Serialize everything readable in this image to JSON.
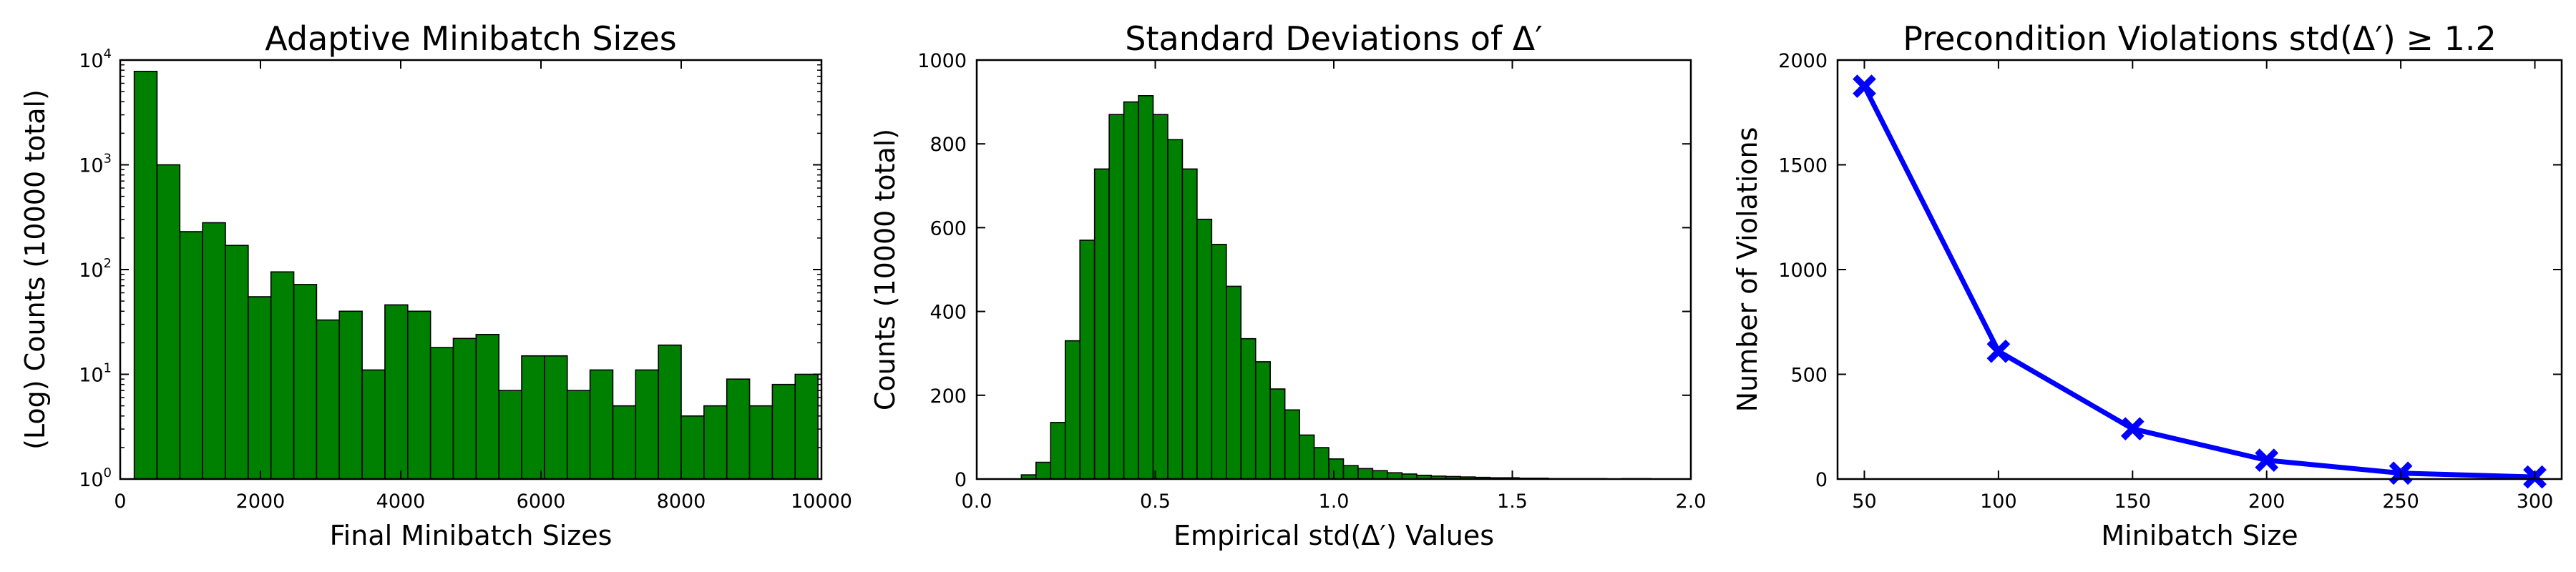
{
  "chart_data": [
    {
      "type": "bar",
      "title": "Adaptive Minibatch Sizes",
      "xlabel": "Final Minibatch Sizes",
      "ylabel": "(Log) Counts (10000 total)",
      "yscale": "log",
      "xlim": [
        0,
        10000
      ],
      "ylim": [
        1,
        10000
      ],
      "xticks": [
        0,
        2000,
        4000,
        6000,
        8000,
        10000
      ],
      "yticks": [
        1,
        10,
        100,
        1000,
        10000
      ],
      "ytick_labels": [
        {
          "base": "10",
          "exp": "0"
        },
        {
          "base": "10",
          "exp": "1"
        },
        {
          "base": "10",
          "exp": "2"
        },
        {
          "base": "10",
          "exp": "3"
        },
        {
          "base": "10",
          "exp": "4"
        }
      ],
      "bar_color": "#008000",
      "bins": [
        [
          200,
          525,
          7800
        ],
        [
          525,
          850,
          1000
        ],
        [
          850,
          1175,
          230
        ],
        [
          1175,
          1500,
          280
        ],
        [
          1500,
          1825,
          170
        ],
        [
          1825,
          2150,
          55
        ],
        [
          2150,
          2475,
          95
        ],
        [
          2475,
          2800,
          72
        ],
        [
          2800,
          3125,
          33
        ],
        [
          3125,
          3450,
          40
        ],
        [
          3450,
          3775,
          11
        ],
        [
          3775,
          4100,
          46
        ],
        [
          4100,
          4425,
          40
        ],
        [
          4425,
          4750,
          18
        ],
        [
          4750,
          5075,
          22
        ],
        [
          5075,
          5400,
          24
        ],
        [
          5400,
          5725,
          7
        ],
        [
          5725,
          6050,
          15
        ],
        [
          6050,
          6375,
          15
        ],
        [
          6375,
          6700,
          7
        ],
        [
          6700,
          7025,
          11
        ],
        [
          7025,
          7350,
          5
        ],
        [
          7350,
          7675,
          11
        ],
        [
          7675,
          8000,
          19
        ],
        [
          8000,
          8325,
          4
        ],
        [
          8325,
          8650,
          5
        ],
        [
          8650,
          8975,
          9
        ],
        [
          8975,
          9300,
          5
        ],
        [
          9300,
          9625,
          8
        ],
        [
          9625,
          9950,
          10
        ]
      ]
    },
    {
      "type": "bar",
      "title": "Standard Deviations of Δ′",
      "xlabel": "Empirical std(Δ′) Values",
      "ylabel": "Counts (10000 total)",
      "xlim": [
        0.0,
        2.0
      ],
      "ylim": [
        0,
        1000
      ],
      "xticks": [
        0.0,
        0.5,
        1.0,
        1.5,
        2.0
      ],
      "xtick_labels": [
        "0.0",
        "0.5",
        "1.0",
        "1.5",
        "2.0"
      ],
      "yticks": [
        0,
        200,
        400,
        600,
        800,
        1000
      ],
      "bar_color": "#008000",
      "bins": [
        [
          0.125,
          0.166,
          10
        ],
        [
          0.166,
          0.207,
          40
        ],
        [
          0.207,
          0.248,
          135
        ],
        [
          0.248,
          0.289,
          330
        ],
        [
          0.289,
          0.33,
          570
        ],
        [
          0.33,
          0.371,
          740
        ],
        [
          0.371,
          0.412,
          870
        ],
        [
          0.412,
          0.453,
          900
        ],
        [
          0.453,
          0.494,
          915
        ],
        [
          0.494,
          0.535,
          870
        ],
        [
          0.535,
          0.576,
          810
        ],
        [
          0.576,
          0.617,
          740
        ],
        [
          0.617,
          0.658,
          620
        ],
        [
          0.658,
          0.699,
          560
        ],
        [
          0.699,
          0.74,
          460
        ],
        [
          0.74,
          0.781,
          335
        ],
        [
          0.781,
          0.822,
          280
        ],
        [
          0.822,
          0.863,
          215
        ],
        [
          0.863,
          0.904,
          165
        ],
        [
          0.904,
          0.945,
          105
        ],
        [
          0.945,
          0.986,
          75
        ],
        [
          0.986,
          1.027,
          48
        ],
        [
          1.027,
          1.068,
          32
        ],
        [
          1.068,
          1.109,
          25
        ],
        [
          1.109,
          1.15,
          20
        ],
        [
          1.15,
          1.191,
          15
        ],
        [
          1.191,
          1.232,
          12
        ],
        [
          1.232,
          1.273,
          9
        ],
        [
          1.273,
          1.314,
          7
        ],
        [
          1.314,
          1.355,
          6
        ],
        [
          1.355,
          1.396,
          5
        ],
        [
          1.396,
          1.437,
          4
        ],
        [
          1.437,
          1.478,
          3
        ],
        [
          1.478,
          1.519,
          3
        ],
        [
          1.519,
          1.56,
          2
        ],
        [
          1.56,
          1.601,
          2
        ],
        [
          1.601,
          1.642,
          1
        ],
        [
          1.642,
          1.683,
          1
        ],
        [
          1.683,
          1.724,
          1
        ],
        [
          1.724,
          1.765,
          1
        ],
        [
          1.806,
          1.847,
          1
        ],
        [
          1.847,
          1.888,
          1
        ]
      ]
    },
    {
      "type": "line",
      "title": "Precondition Violations std(Δ′) ≥ 1.2",
      "xlabel": "Minibatch Size",
      "ylabel": "Number of Violations",
      "xlim": [
        40,
        310
      ],
      "ylim": [
        0,
        2000
      ],
      "xticks": [
        50,
        100,
        150,
        200,
        250,
        300
      ],
      "yticks": [
        0,
        500,
        1000,
        1500,
        2000
      ],
      "line_color": "#0000ff",
      "marker": "x",
      "x": [
        50,
        100,
        150,
        200,
        250,
        300
      ],
      "y": [
        1875,
        610,
        240,
        90,
        28,
        10
      ]
    }
  ]
}
